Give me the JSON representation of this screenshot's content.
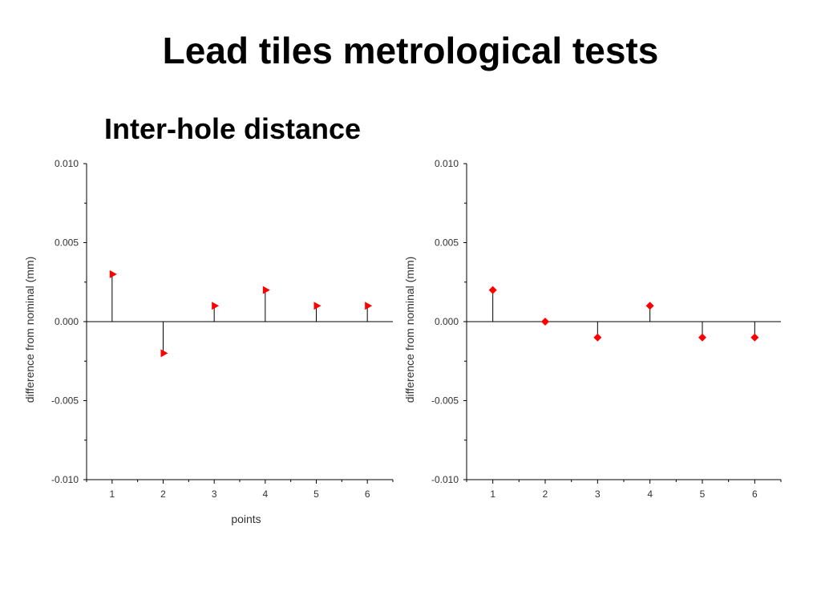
{
  "slide": {
    "title": "Lead tiles metrological tests",
    "subtitle": "Inter-hole distance"
  },
  "chart_data": [
    {
      "type": "scatter",
      "style": "stem",
      "marker": "triangle-right",
      "marker_color": "#ff0000",
      "x": [
        1,
        2,
        3,
        4,
        5,
        6
      ],
      "y": [
        0.003,
        -0.002,
        0.001,
        0.002,
        0.001,
        0.001
      ],
      "xlim": [
        0.5,
        6.5
      ],
      "ylim": [
        -0.01,
        0.01
      ],
      "xticks": [
        "1",
        "2",
        "3",
        "4",
        "5",
        "6"
      ],
      "yticks": [
        "0.010",
        "0.005",
        "0.000",
        "-0.005",
        "-0.010"
      ],
      "xlabel": "points",
      "ylabel": "difference from nominal (mm)",
      "grid": false
    },
    {
      "type": "scatter",
      "style": "stem",
      "marker": "diamond",
      "marker_color": "#ff0000",
      "x": [
        1,
        2,
        3,
        4,
        5,
        6
      ],
      "y": [
        0.002,
        0.0,
        -0.001,
        0.001,
        -0.001,
        -0.001
      ],
      "xlim": [
        0.5,
        6.5
      ],
      "ylim": [
        -0.01,
        0.01
      ],
      "xticks": [
        "1",
        "2",
        "3",
        "4",
        "5",
        "6"
      ],
      "yticks": [
        "0.010",
        "0.005",
        "0.000",
        "-0.005",
        "-0.010"
      ],
      "xlabel": "",
      "ylabel": "difference from nominal (mm)",
      "grid": false
    }
  ]
}
